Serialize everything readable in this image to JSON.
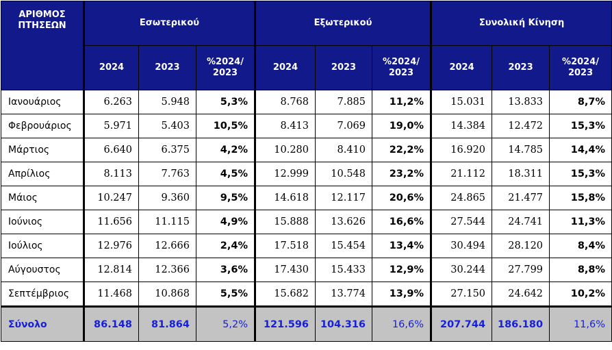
{
  "header": {
    "first_col": "ΑΡΙΘΜΟΣ ΠΤΗΣΕΩΝ",
    "groups": [
      "Εσωτερικού",
      "Εξωτερικού",
      "Συνολική Κίνηση"
    ],
    "sub": [
      "2024",
      "2023",
      "%2024/ 2023"
    ]
  },
  "rows": [
    {
      "month": "Ιανουάριος",
      "cells": [
        "6.263",
        "5.948",
        "5,3%",
        "8.768",
        "7.885",
        "11,2%",
        "15.031",
        "13.833",
        "8,7%"
      ]
    },
    {
      "month": "Φεβρουάριος",
      "cells": [
        "5.971",
        "5.403",
        "10,5%",
        "8.413",
        "7.069",
        "19,0%",
        "14.384",
        "12.472",
        "15,3%"
      ]
    },
    {
      "month": "Μάρτιος",
      "cells": [
        "6.640",
        "6.375",
        "4,2%",
        "10.280",
        "8.410",
        "22,2%",
        "16.920",
        "14.785",
        "14,4%"
      ]
    },
    {
      "month": "Απρίλιος",
      "cells": [
        "8.113",
        "7.763",
        "4,5%",
        "12.999",
        "10.548",
        "23,2%",
        "21.112",
        "18.311",
        "15,3%"
      ]
    },
    {
      "month": "Μάιος",
      "cells": [
        "10.247",
        "9.360",
        "9,5%",
        "14.618",
        "12.117",
        "20,6%",
        "24.865",
        "21.477",
        "15,8%"
      ]
    },
    {
      "month": "Ιούνιος",
      "cells": [
        "11.656",
        "11.115",
        "4,9%",
        "15.888",
        "13.626",
        "16,6%",
        "27.544",
        "24.741",
        "11,3%"
      ]
    },
    {
      "month": "Ιούλιος",
      "cells": [
        "12.976",
        "12.666",
        "2,4%",
        "17.518",
        "15.454",
        "13,4%",
        "30.494",
        "28.120",
        "8,4%"
      ]
    },
    {
      "month": "Αύγουστος",
      "cells": [
        "12.814",
        "12.366",
        "3,6%",
        "17.430",
        "15.433",
        "12,9%",
        "30.244",
        "27.799",
        "8,8%"
      ]
    },
    {
      "month": "Σεπτέμβριος",
      "cells": [
        "11.468",
        "10.868",
        "5,5%",
        "15.682",
        "13.774",
        "13,9%",
        "27.150",
        "24.642",
        "10,2%"
      ]
    }
  ],
  "total": {
    "label": "Σύνολο",
    "cells": [
      "86.148",
      "81.864",
      "5,2%",
      "121.596",
      "104.316",
      "16,6%",
      "207.744",
      "186.180",
      "11,6%"
    ]
  },
  "colors": {
    "header_bg": "#12198a",
    "total_bg": "#c3c3c3",
    "total_text": "#1720d9"
  }
}
